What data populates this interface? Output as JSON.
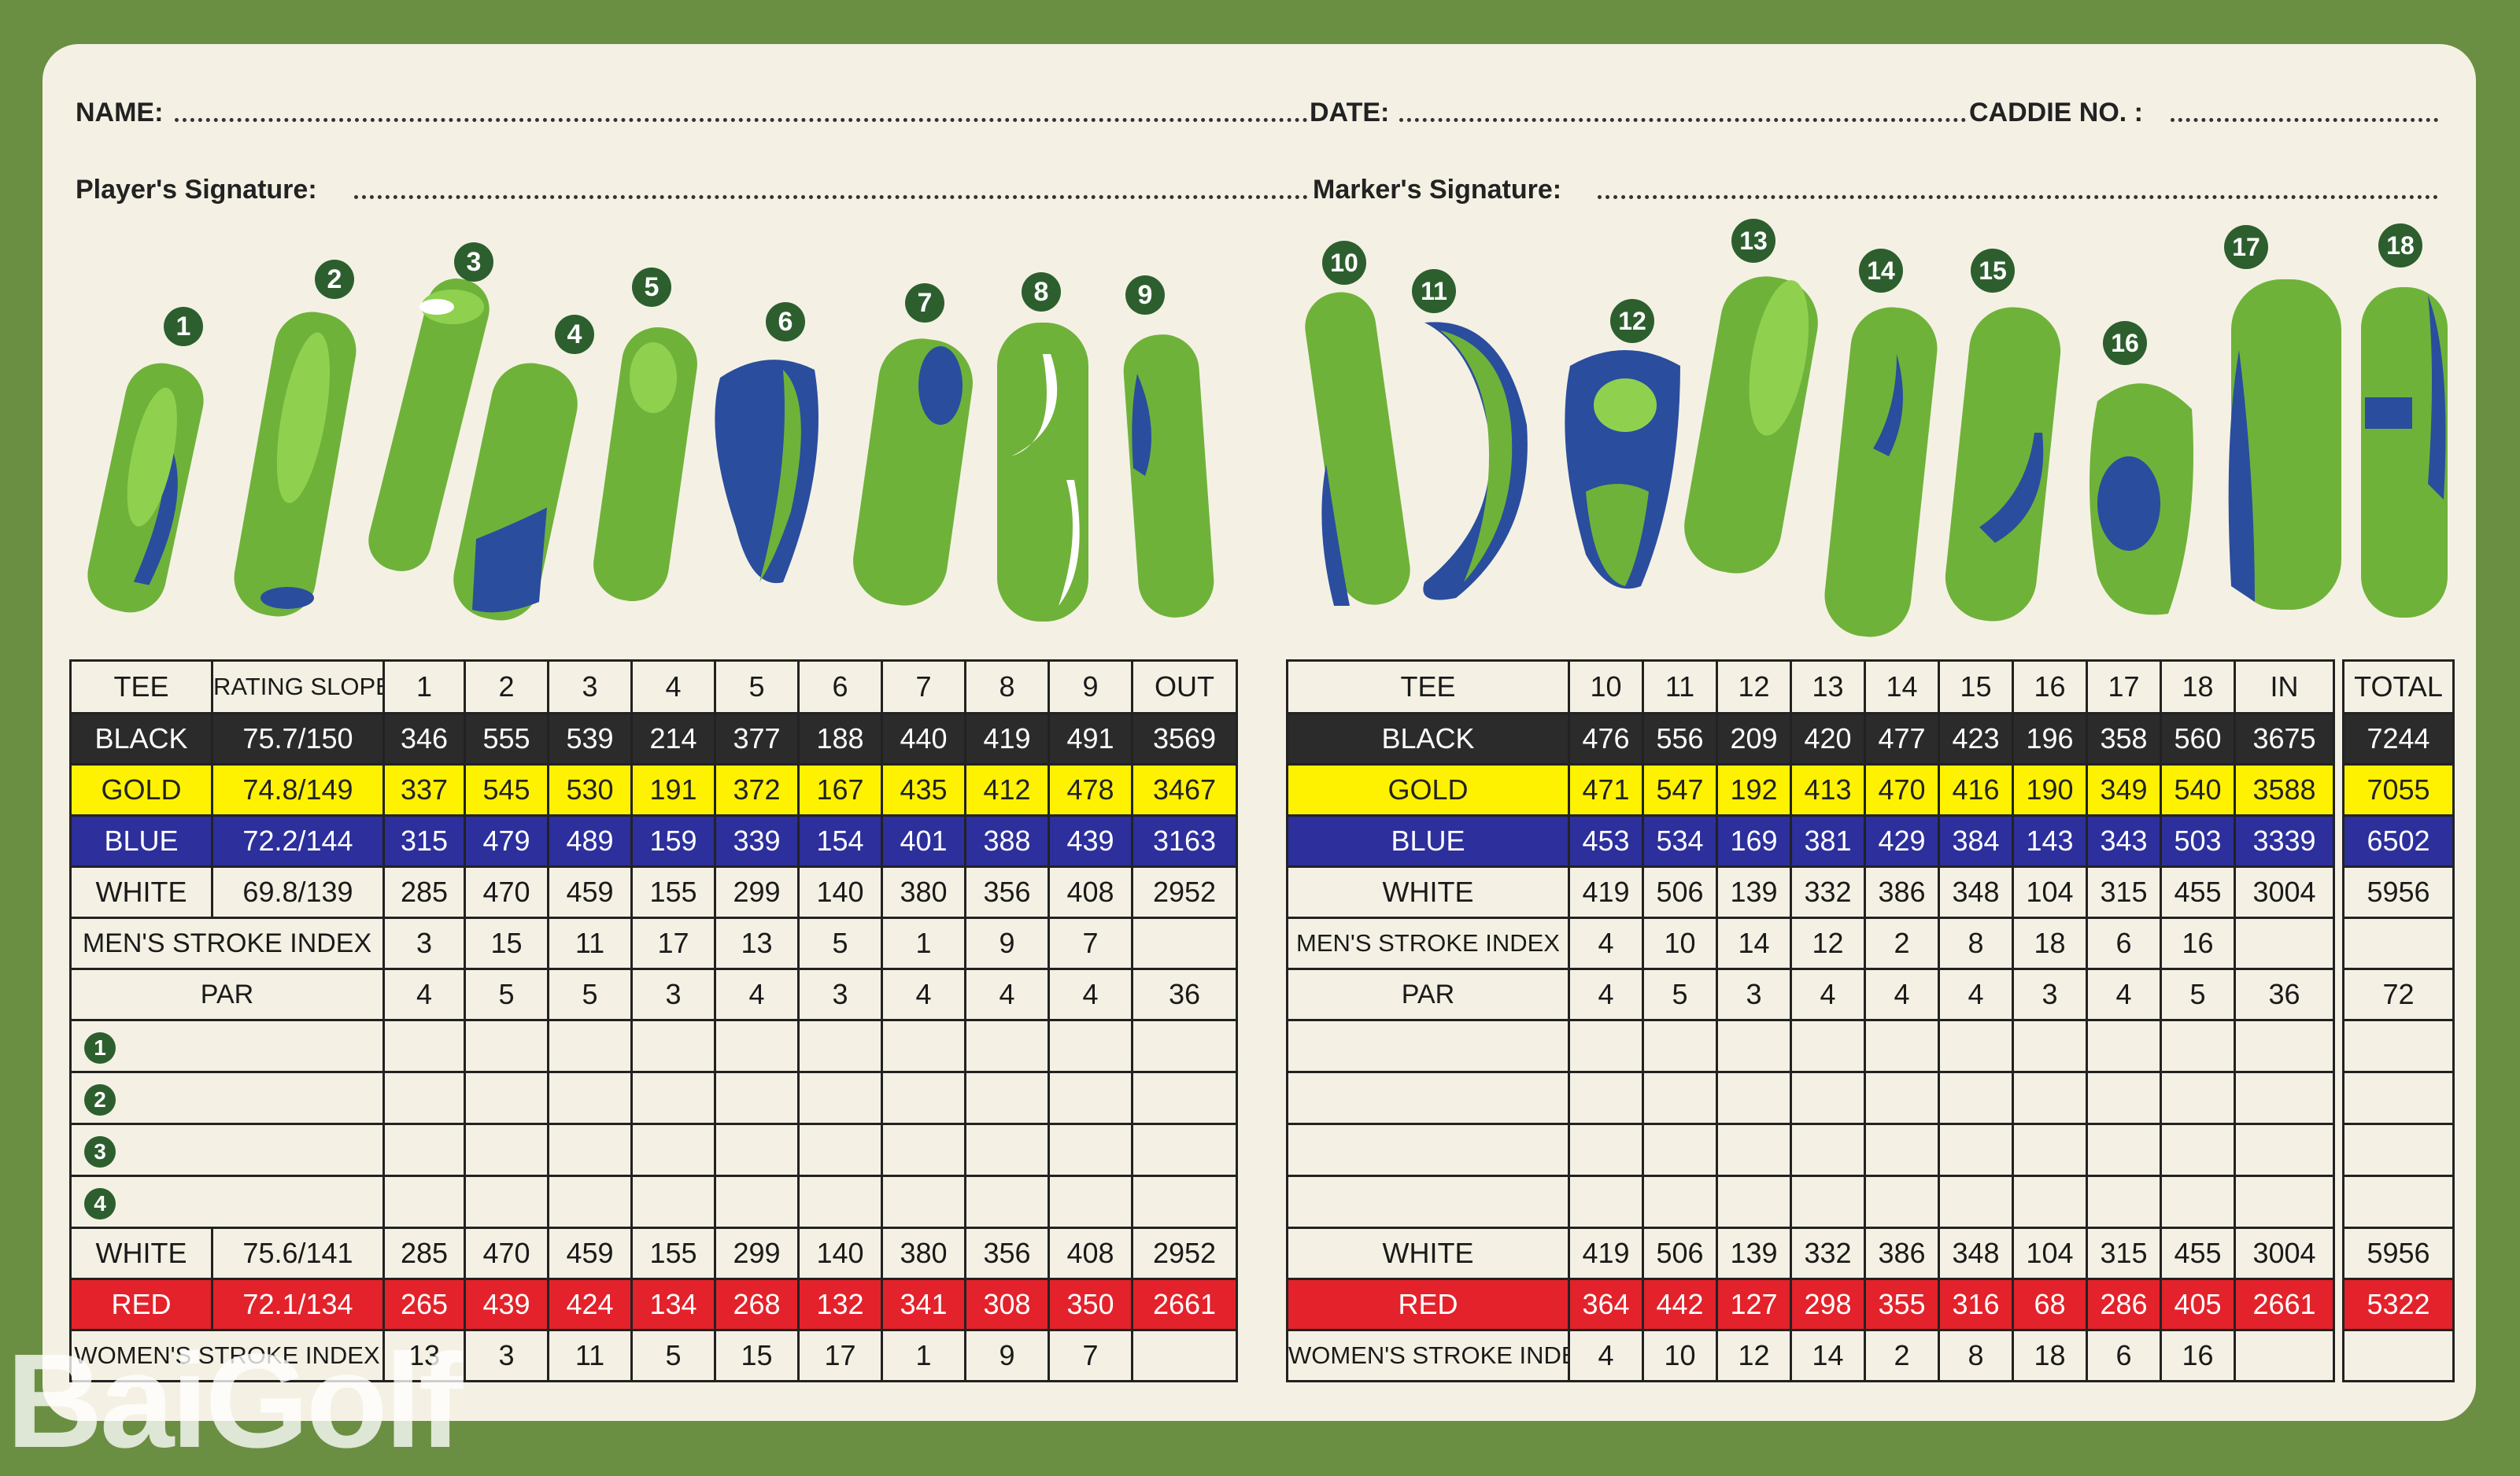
{
  "header": {
    "name_label": "NAME:",
    "date_label": "DATE:",
    "caddie_label": "CADDIE NO. :",
    "player_sig_label": "Player's Signature:",
    "marker_sig_label": "Marker's Signature:"
  },
  "colors": {
    "black": "#2b2b2b",
    "gold": "#fff200",
    "blue": "#2c2f9c",
    "red": "#e3222b",
    "fairway": "#6fb23a",
    "water": "#2a4d9e",
    "badge": "#2d5f2e",
    "frame": "#6a8f42"
  },
  "hole_badges": [
    "1",
    "2",
    "3",
    "4",
    "5",
    "6",
    "7",
    "8",
    "9",
    "10",
    "11",
    "12",
    "13",
    "14",
    "15",
    "16",
    "17",
    "18"
  ],
  "front": {
    "headers": [
      "TEE",
      "RATING SLOPE",
      "1",
      "2",
      "3",
      "4",
      "5",
      "6",
      "7",
      "8",
      "9",
      "OUT"
    ],
    "rows": {
      "black": {
        "tee": "BLACK",
        "rating": "75.7/150",
        "vals": [
          "346",
          "555",
          "539",
          "214",
          "377",
          "188",
          "440",
          "419",
          "491",
          "3569"
        ]
      },
      "gold": {
        "tee": "GOLD",
        "rating": "74.8/149",
        "vals": [
          "337",
          "545",
          "530",
          "191",
          "372",
          "167",
          "435",
          "412",
          "478",
          "3467"
        ]
      },
      "blue": {
        "tee": "BLUE",
        "rating": "72.2/144",
        "vals": [
          "315",
          "479",
          "489",
          "159",
          "339",
          "154",
          "401",
          "388",
          "439",
          "3163"
        ]
      },
      "white": {
        "tee": "WHITE",
        "rating": "69.8/139",
        "vals": [
          "285",
          "470",
          "459",
          "155",
          "299",
          "140",
          "380",
          "356",
          "408",
          "2952"
        ]
      },
      "msi": {
        "label": "MEN'S STROKE INDEX",
        "vals": [
          "3",
          "15",
          "11",
          "17",
          "13",
          "5",
          "1",
          "9",
          "7",
          ""
        ]
      },
      "par": {
        "label": "PAR",
        "vals": [
          "4",
          "5",
          "5",
          "3",
          "4",
          "3",
          "4",
          "4",
          "4",
          "36"
        ]
      },
      "players": [
        "1",
        "2",
        "3",
        "4"
      ],
      "white2": {
        "tee": "WHITE",
        "rating": "75.6/141",
        "vals": [
          "285",
          "470",
          "459",
          "155",
          "299",
          "140",
          "380",
          "356",
          "408",
          "2952"
        ]
      },
      "red": {
        "tee": "RED",
        "rating": "72.1/134",
        "vals": [
          "265",
          "439",
          "424",
          "134",
          "268",
          "132",
          "341",
          "308",
          "350",
          "2661"
        ]
      },
      "wsi": {
        "label": "WOMEN'S STROKE INDEX",
        "vals": [
          "13",
          "3",
          "11",
          "5",
          "15",
          "17",
          "1",
          "9",
          "7",
          ""
        ]
      }
    }
  },
  "back": {
    "headers": [
      "TEE",
      "10",
      "11",
      "12",
      "13",
      "14",
      "15",
      "16",
      "17",
      "18",
      "IN"
    ],
    "rows": {
      "black": {
        "tee": "BLACK",
        "vals": [
          "476",
          "556",
          "209",
          "420",
          "477",
          "423",
          "196",
          "358",
          "560",
          "3675"
        ]
      },
      "gold": {
        "tee": "GOLD",
        "vals": [
          "471",
          "547",
          "192",
          "413",
          "470",
          "416",
          "190",
          "349",
          "540",
          "3588"
        ]
      },
      "blue": {
        "tee": "BLUE",
        "vals": [
          "453",
          "534",
          "169",
          "381",
          "429",
          "384",
          "143",
          "343",
          "503",
          "3339"
        ]
      },
      "white": {
        "tee": "WHITE",
        "vals": [
          "419",
          "506",
          "139",
          "332",
          "386",
          "348",
          "104",
          "315",
          "455",
          "3004"
        ]
      },
      "msi": {
        "label": "MEN'S STROKE INDEX",
        "vals": [
          "4",
          "10",
          "14",
          "12",
          "2",
          "8",
          "18",
          "6",
          "16",
          ""
        ]
      },
      "par": {
        "label": "PAR",
        "vals": [
          "4",
          "5",
          "3",
          "4",
          "4",
          "4",
          "3",
          "4",
          "5",
          "36"
        ]
      },
      "white2": {
        "tee": "WHITE",
        "vals": [
          "419",
          "506",
          "139",
          "332",
          "386",
          "348",
          "104",
          "315",
          "455",
          "3004"
        ]
      },
      "red": {
        "tee": "RED",
        "vals": [
          "364",
          "442",
          "127",
          "298",
          "355",
          "316",
          "68",
          "286",
          "405",
          "2661"
        ]
      },
      "wsi": {
        "label": "WOMEN'S STROKE INDEX",
        "vals": [
          "4",
          "10",
          "12",
          "14",
          "2",
          "8",
          "18",
          "6",
          "16",
          ""
        ]
      }
    }
  },
  "total": {
    "header": "TOTAL",
    "black": "7244",
    "gold": "7055",
    "blue": "6502",
    "white": "5956",
    "msi": "",
    "par": "72",
    "white2": "5956",
    "red": "5322",
    "wsi": ""
  },
  "watermark": "BaiGolf"
}
